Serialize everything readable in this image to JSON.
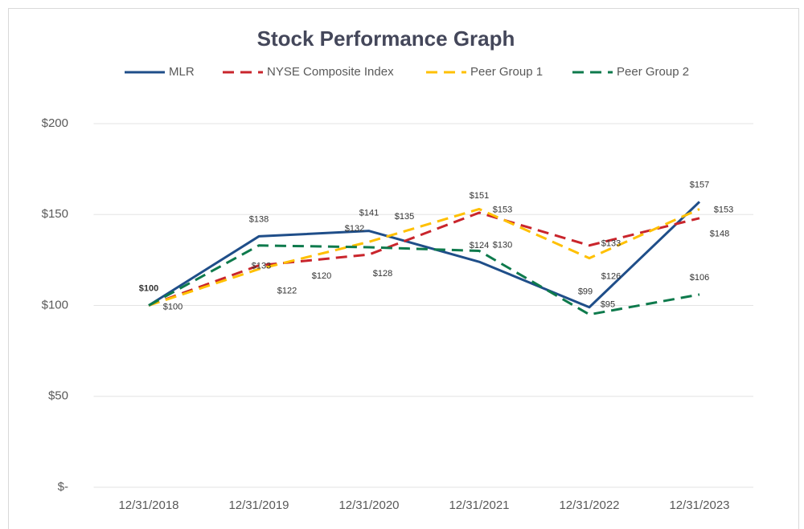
{
  "chart_data": {
    "type": "line",
    "title": "Stock Performance Graph",
    "categories": [
      "12/31/2018",
      "12/31/2019",
      "12/31/2020",
      "12/31/2021",
      "12/31/2022",
      "12/31/2023"
    ],
    "series": [
      {
        "name": "MLR",
        "color": "#1f4e89",
        "values": [
          100,
          138,
          141,
          124,
          99,
          157
        ],
        "value_labels": [
          "$100",
          "$138",
          "$141",
          "$124",
          "$99",
          "$157"
        ]
      },
      {
        "name": "NYSE Composite Index",
        "color": "#c9252c",
        "values": [
          100,
          122,
          128,
          151,
          133,
          148
        ],
        "value_labels": [
          "$100",
          "$122",
          "$128",
          "$151",
          "$133",
          "$148"
        ]
      },
      {
        "name": "Peer Group 1",
        "color": "#ffc000",
        "values": [
          100,
          120,
          135,
          153,
          126,
          153
        ],
        "value_labels": [
          null,
          "$120",
          "$135",
          "$153",
          "$126",
          "$153"
        ]
      },
      {
        "name": "Peer Group 2",
        "color": "#0e7a4c",
        "values": [
          100,
          133,
          132,
          130,
          95,
          106
        ],
        "value_labels": [
          null,
          "$133",
          "$132",
          "$130",
          "$95",
          "$106"
        ]
      }
    ],
    "ylim": [
      0,
      200
    ],
    "yticks": [
      {
        "value": 0,
        "label": "$-"
      },
      {
        "value": 50,
        "label": "$50"
      },
      {
        "value": 100,
        "label": "$100"
      },
      {
        "value": 150,
        "label": "$150"
      },
      {
        "value": 200,
        "label": "$200"
      }
    ],
    "grid": true,
    "legend": "top"
  }
}
